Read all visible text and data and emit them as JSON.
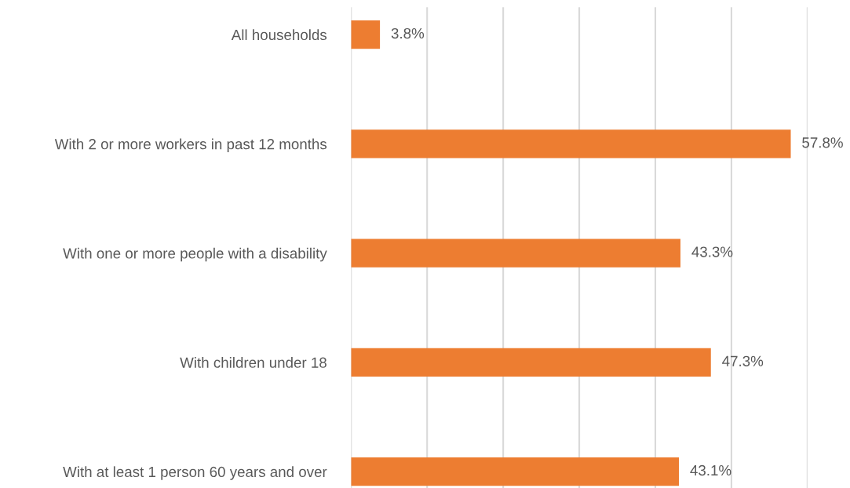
{
  "chart_data": {
    "type": "bar",
    "orientation": "horizontal",
    "categories": [
      "All households",
      "With 2 or more workers in past 12 months",
      "With one or more people with a disability",
      "With children under 18",
      "With at least 1 person 60 years and over"
    ],
    "values": [
      3.8,
      57.8,
      43.3,
      47.3,
      43.1
    ],
    "value_labels": [
      "3.8%",
      "57.8%",
      "43.3%",
      "47.3%",
      "43.1%"
    ],
    "color": "#ed7d31",
    "xlim": [
      0,
      60
    ],
    "xticks": [
      {
        "value": 0,
        "label": null
      },
      {
        "value": 10,
        "label": null
      },
      {
        "value": 20,
        "label": null
      },
      {
        "value": 30,
        "label": null
      },
      {
        "value": 40,
        "label": null
      },
      {
        "value": 50,
        "label": null
      },
      {
        "value": 60,
        "label": null
      }
    ],
    "tick_labels": "y",
    "grid": "x",
    "legend": false
  }
}
